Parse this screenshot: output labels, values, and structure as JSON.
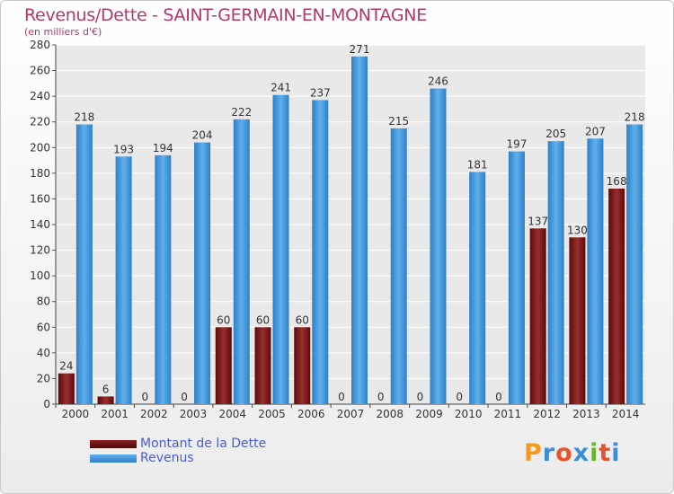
{
  "header": {
    "title": "Revenus/Dette - SAINT-GERMAIN-EN-MONTAGNE",
    "subtitle": "(en milliers d'€)"
  },
  "logo": {
    "text": "Proxiti",
    "colors": [
      "#f39a1e",
      "#3c8fd6",
      "#e8532b",
      "#3c8fd6",
      "#6ab42d",
      "#e8532b",
      "#3c8fd6"
    ]
  },
  "chart_data": {
    "type": "bar",
    "title": "Revenus/Dette - SAINT-GERMAIN-EN-MONTAGNE",
    "ylabel": "(en milliers d'€)",
    "xlabel": "",
    "categories": [
      "2000",
      "2001",
      "2002",
      "2003",
      "2004",
      "2005",
      "2006",
      "2007",
      "2008",
      "2009",
      "2010",
      "2011",
      "2012",
      "2013",
      "2014"
    ],
    "series": [
      {
        "name": "Montant de la Dette",
        "color": "#7a1a1a",
        "values": [
          24,
          6,
          0,
          0,
          60,
          60,
          60,
          0,
          0,
          0,
          0,
          0,
          137,
          130,
          168
        ]
      },
      {
        "name": "Revenus",
        "color": "#3d93d8",
        "values": [
          218,
          193,
          194,
          204,
          222,
          241,
          237,
          271,
          215,
          246,
          181,
          197,
          205,
          207,
          218
        ]
      }
    ],
    "yticks": [
      0,
      20,
      40,
      60,
      80,
      100,
      120,
      140,
      160,
      180,
      200,
      220,
      240,
      260,
      280
    ],
    "ylim": [
      0,
      280
    ],
    "grid": true,
    "legend_position": "bottom-left"
  }
}
